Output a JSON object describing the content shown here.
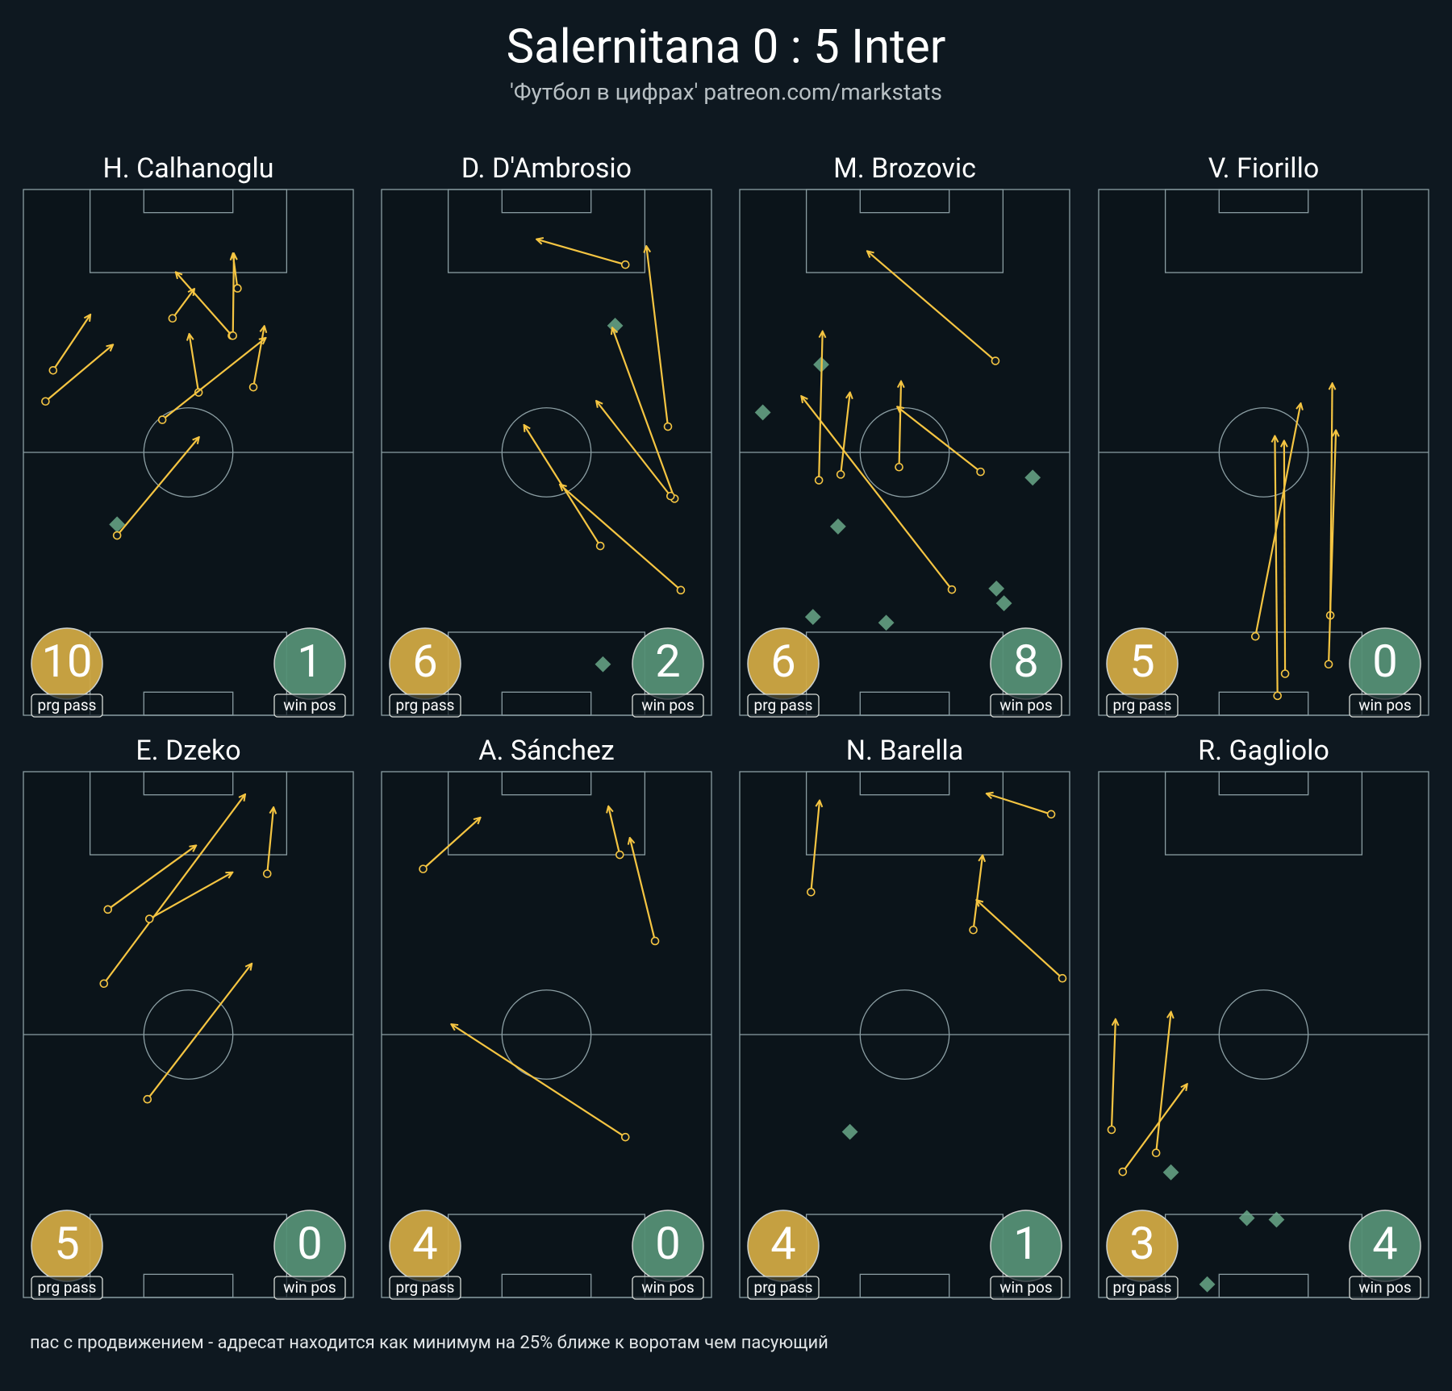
{
  "header": {
    "title": "Salernitana 0 : 5 Inter",
    "subtitle": "'Футбол в цифрах' patreon.com/markstats"
  },
  "chart_data": [
    {
      "type": "pass-map",
      "title": "H. Calhanoglu",
      "xlim": [
        0,
        100
      ],
      "ylim": [
        0,
        100
      ],
      "passes": [
        [
          9.0,
          34.4,
          20.2,
          23.9
        ],
        [
          6.7,
          40.3,
          27.0,
          29.6
        ],
        [
          45.2,
          24.5,
          51.7,
          19.0
        ],
        [
          63.2,
          27.8,
          46.3,
          15.8
        ],
        [
          64.9,
          18.8,
          63.5,
          12.3
        ],
        [
          63.5,
          27.8,
          63.8,
          12.3
        ],
        [
          53.1,
          38.6,
          50.3,
          27.6
        ],
        [
          69.7,
          37.6,
          73.0,
          26.1
        ],
        [
          42.1,
          43.8,
          73.3,
          28.3
        ],
        [
          28.4,
          65.8,
          53.1,
          47.2
        ]
      ],
      "win_positions": [
        [
          28.4,
          63.7
        ]
      ],
      "stats": [
        {
          "value": 10,
          "label": "prg pass"
        },
        {
          "value": 1,
          "label": "win pos"
        }
      ]
    },
    {
      "type": "pass-map",
      "title": "D. D'Ambrosio",
      "xlim": [
        0,
        100
      ],
      "ylim": [
        0,
        100
      ],
      "passes": [
        [
          73.9,
          14.3,
          47.2,
          9.5
        ],
        [
          86.8,
          45.1,
          80.3,
          10.9
        ],
        [
          88.8,
          58.8,
          70.0,
          26.4
        ],
        [
          87.6,
          58.3,
          65.2,
          40.3
        ],
        [
          66.3,
          67.8,
          43.3,
          44.9
        ],
        [
          90.7,
          76.2,
          54.2,
          56.2
        ]
      ],
      "win_positions": [
        [
          70.8,
          25.9
        ],
        [
          67.1,
          90.3
        ]
      ],
      "stats": [
        {
          "value": 6,
          "label": "prg pass"
        },
        {
          "value": 2,
          "label": "win pos"
        }
      ]
    },
    {
      "type": "pass-map",
      "title": "M. Brozovic",
      "xlim": [
        0,
        100
      ],
      "ylim": [
        0,
        100
      ],
      "passes": [
        [
          77.5,
          32.6,
          38.8,
          11.8
        ],
        [
          24.0,
          55.3,
          25.1,
          27.1
        ],
        [
          30.6,
          54.2,
          33.4,
          38.7
        ],
        [
          48.3,
          52.8,
          48.9,
          36.6
        ],
        [
          73.0,
          53.7,
          47.9,
          41.4
        ],
        [
          64.3,
          76.1,
          18.8,
          39.4
        ]
      ],
      "win_positions": [
        [
          24.7,
          33.3
        ],
        [
          7.0,
          42.4
        ],
        [
          88.8,
          54.8
        ],
        [
          29.8,
          64.1
        ],
        [
          77.8,
          75.9
        ],
        [
          80.1,
          78.7
        ],
        [
          22.2,
          81.3
        ],
        [
          44.4,
          82.4
        ]
      ],
      "stats": [
        {
          "value": 6,
          "label": "prg pass"
        },
        {
          "value": 8,
          "label": "win pos"
        }
      ]
    },
    {
      "type": "pass-map",
      "title": "V. Fiorillo",
      "xlim": [
        0,
        100
      ],
      "ylim": [
        0,
        100
      ],
      "passes": [
        [
          47.5,
          85.0,
          61.2,
          40.8
        ],
        [
          54.2,
          96.3,
          53.4,
          47.0
        ],
        [
          56.5,
          92.1,
          56.2,
          47.9
        ],
        [
          70.2,
          81.0,
          70.8,
          37.0
        ],
        [
          69.7,
          90.3,
          71.9,
          45.9
        ]
      ],
      "win_positions": [],
      "stats": [
        {
          "value": 5,
          "label": "prg pass"
        },
        {
          "value": 0,
          "label": "win pos"
        }
      ]
    },
    {
      "type": "pass-map",
      "title": "E. Dzeko",
      "xlim": [
        0,
        100
      ],
      "ylim": [
        0,
        100
      ],
      "passes": [
        [
          25.6,
          26.2,
          52.2,
          14.1
        ],
        [
          24.4,
          40.3,
          67.1,
          4.4
        ],
        [
          38.2,
          28.0,
          63.2,
          19.2
        ],
        [
          73.9,
          19.4,
          75.8,
          6.9
        ],
        [
          37.6,
          62.3,
          69.1,
          36.6
        ]
      ],
      "win_positions": [],
      "stats": [
        {
          "value": 5,
          "label": "prg pass"
        },
        {
          "value": 0,
          "label": "win pos"
        }
      ]
    },
    {
      "type": "pass-map",
      "title": "A. Sánchez",
      "xlim": [
        0,
        100
      ],
      "ylim": [
        0,
        100
      ],
      "passes": [
        [
          12.6,
          18.5,
          29.8,
          8.8
        ],
        [
          72.2,
          15.8,
          68.8,
          6.7
        ],
        [
          82.9,
          32.2,
          75.3,
          12.7
        ],
        [
          73.9,
          69.5,
          21.3,
          48.1
        ]
      ],
      "win_positions": [],
      "stats": [
        {
          "value": 4,
          "label": "prg pass"
        },
        {
          "value": 0,
          "label": "win pos"
        }
      ]
    },
    {
      "type": "pass-map",
      "title": "N. Barella",
      "xlim": [
        0,
        100
      ],
      "ylim": [
        0,
        100
      ],
      "passes": [
        [
          21.6,
          22.9,
          24.2,
          5.6
        ],
        [
          94.4,
          8.1,
          75.0,
          4.2
        ],
        [
          70.8,
          30.1,
          73.6,
          16.0
        ],
        [
          97.8,
          39.3,
          71.9,
          24.5
        ]
      ],
      "win_positions": [
        [
          33.4,
          68.5
        ]
      ],
      "stats": [
        {
          "value": 4,
          "label": "prg pass"
        },
        {
          "value": 1,
          "label": "win pos"
        }
      ]
    },
    {
      "type": "pass-map",
      "title": "R. Gagliolo",
      "xlim": [
        0,
        100
      ],
      "ylim": [
        0,
        100
      ],
      "passes": [
        [
          3.9,
          68.1,
          5.1,
          47.2
        ],
        [
          17.4,
          72.5,
          21.9,
          45.8
        ],
        [
          7.3,
          76.1,
          26.7,
          59.5
        ]
      ],
      "win_positions": [
        [
          21.9,
          76.2
        ],
        [
          44.9,
          84.9
        ],
        [
          53.9,
          85.2
        ],
        [
          32.9,
          97.5
        ]
      ],
      "stats": [
        {
          "value": 3,
          "label": "prg pass"
        },
        {
          "value": 4,
          "label": "win pos"
        }
      ]
    }
  ],
  "footnote": "пас с продвижением - адресат находится как минимум на 25% ближе к воротам чем пасующий"
}
